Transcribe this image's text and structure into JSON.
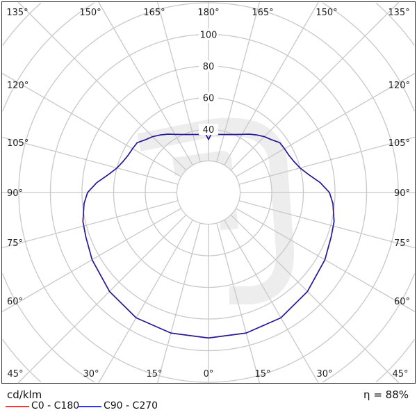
{
  "chart_data": {
    "type": "polar-line",
    "unit_label": "cd/klm",
    "efficiency_label": "η = 88%",
    "radial_ticks": [
      40,
      60,
      80,
      100
    ],
    "radial_grid_step": 20,
    "angle_grid_step_deg": 15,
    "angle_labels": {
      "top": [
        "135°",
        "150°",
        "165°",
        "180°",
        "165°",
        "150°",
        "135°"
      ],
      "left": [
        "120°",
        "105°",
        "90°",
        "75°",
        "60°"
      ],
      "right": [
        "120°",
        "105°",
        "90°",
        "75°",
        "60°"
      ],
      "bottom": [
        "45°",
        "30°",
        "15°",
        "0°",
        "15°",
        "30°",
        "45°"
      ]
    },
    "gamma_deg": [
      0,
      15,
      30,
      45,
      60,
      70,
      77,
      85,
      90,
      95,
      100,
      105,
      110,
      115,
      120,
      125,
      130,
      135,
      140,
      145,
      150,
      155,
      160,
      165,
      170,
      175,
      177,
      180
    ],
    "series": [
      {
        "name": "C0 - C180",
        "color": "#ff2020",
        "values": [
          92,
          92,
          91.5,
          88.5,
          85,
          82.5,
          81.5,
          79,
          76.5,
          71,
          64.5,
          60,
          57.5,
          56,
          55.5,
          55,
          52,
          50,
          47.5,
          45,
          42.5,
          40.5,
          39,
          38,
          37.3,
          37,
          37.5,
          33.5
        ]
      },
      {
        "name": "C90 - C270",
        "color": "#1a1aa8",
        "values": [
          92,
          92,
          91.5,
          88.5,
          85,
          82.5,
          81.5,
          79,
          76.5,
          71,
          64.5,
          60,
          57.5,
          56,
          55.5,
          55,
          52,
          50,
          47.5,
          45,
          42.5,
          40.5,
          39,
          38,
          37.3,
          37,
          37.5,
          33.5
        ]
      }
    ],
    "legend_colors": {
      "C0 - C180": "#ff3333",
      "C90 - C270": "#3333ff"
    },
    "grid": true,
    "legend_placement": "bottom-left"
  }
}
